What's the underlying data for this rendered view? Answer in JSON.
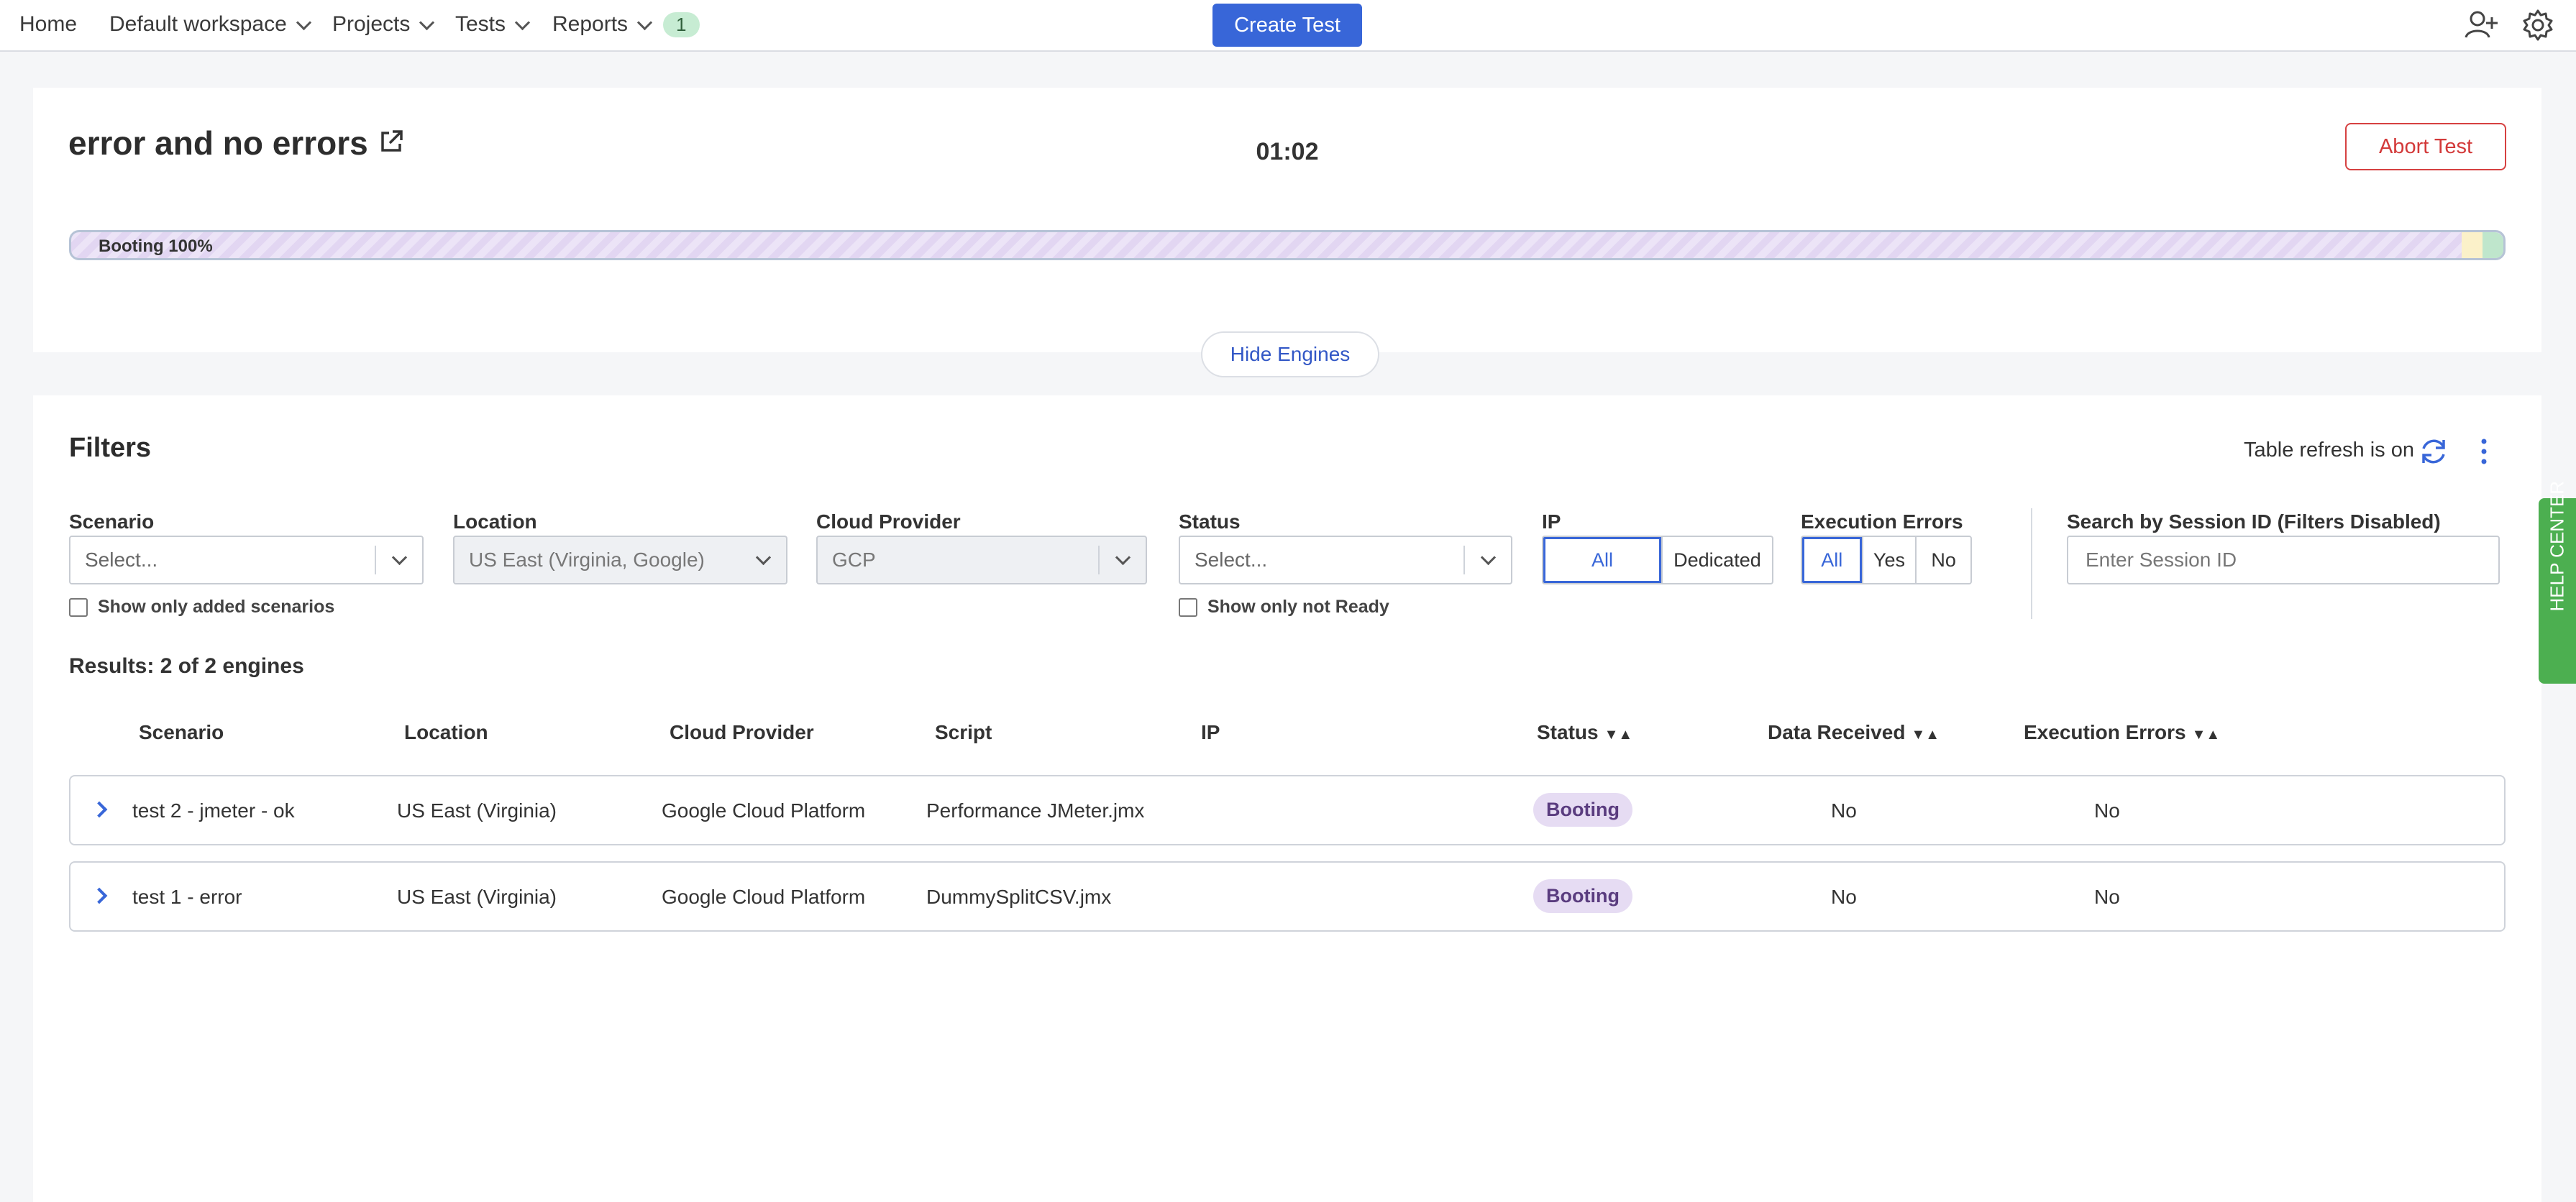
{
  "nav": {
    "items": [
      {
        "label": "Home",
        "dropdown": false
      },
      {
        "label": "Default workspace",
        "dropdown": true
      },
      {
        "label": "Projects",
        "dropdown": true
      },
      {
        "label": "Tests",
        "dropdown": true
      },
      {
        "label": "Reports",
        "dropdown": true
      }
    ],
    "reports_badge": "1",
    "create_test_label": "Create Test",
    "icons": [
      "add-user-icon",
      "gear-icon"
    ]
  },
  "test": {
    "name": "error and no errors",
    "timer": "01:02",
    "abort_label": "Abort Test",
    "progress_label": "Booting 100%",
    "progress_value": 1.0,
    "hide_engines_label": "Hide Engines"
  },
  "filters": {
    "title": "Filters",
    "refresh_text": "Table refresh is on",
    "scenario": {
      "label": "Scenario",
      "value": "Select...",
      "checkbox_label": "Show only added scenarios"
    },
    "location": {
      "label": "Location",
      "value": "US East (Virginia, Google)"
    },
    "cloud_provider": {
      "label": "Cloud Provider",
      "value": "GCP"
    },
    "status": {
      "label": "Status",
      "value": "Select...",
      "checkbox_label": "Show only not Ready"
    },
    "ip": {
      "label": "IP",
      "options": [
        "All",
        "Dedicated"
      ],
      "selected": "All"
    },
    "execution_errors": {
      "label": "Execution Errors",
      "options": [
        "All",
        "Yes",
        "No"
      ],
      "selected": "All"
    },
    "session_search": {
      "label": "Search by Session ID (Filters Disabled)",
      "placeholder": "Enter Session ID"
    }
  },
  "results": {
    "summary": "Results: 2 of 2 engines",
    "columns": [
      "Scenario",
      "Location",
      "Cloud Provider",
      "Script",
      "IP",
      "Status",
      "Data Received",
      "Execution Errors"
    ],
    "sort_glyph": "▼▲",
    "rows": [
      {
        "scenario": "test 2 - jmeter - ok",
        "location": "US East (Virginia)",
        "cloud_provider": "Google Cloud Platform",
        "script": "Performance JMeter.jmx",
        "ip": "",
        "status": "Booting",
        "data_received": "No",
        "execution_errors": "No"
      },
      {
        "scenario": "test 1 - error",
        "location": "US East (Virginia)",
        "cloud_provider": "Google Cloud Platform",
        "script": "DummySplitCSV.jmx",
        "ip": "",
        "status": "Booting",
        "data_received": "No",
        "execution_errors": "No"
      }
    ]
  },
  "help_center": {
    "label": "HELP CENTER"
  },
  "colors": {
    "accent": "#3866d8",
    "danger": "#d33a3a",
    "booting": "#e6dcf3",
    "help": "#4caf50"
  }
}
